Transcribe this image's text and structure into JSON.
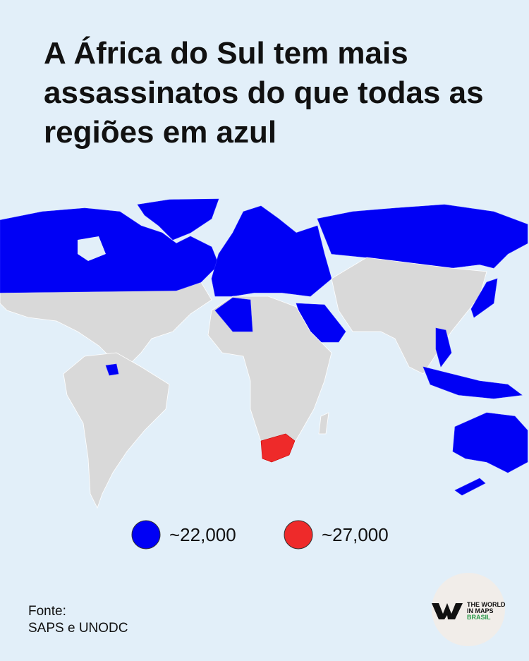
{
  "header": {
    "title": "A África do Sul tem mais assassinatos do que todas as regiões em azul"
  },
  "legend": [
    {
      "label": "~22,000",
      "color": "#0000f5"
    },
    {
      "label": "~27,000",
      "color": "#ee2a2a"
    }
  ],
  "source": {
    "heading": "Fonte:",
    "text": "SAPS e UNODC"
  },
  "logo": {
    "line1": "THE WORLD",
    "line2": "IN MAPS",
    "line3": "BRASIL"
  }
}
